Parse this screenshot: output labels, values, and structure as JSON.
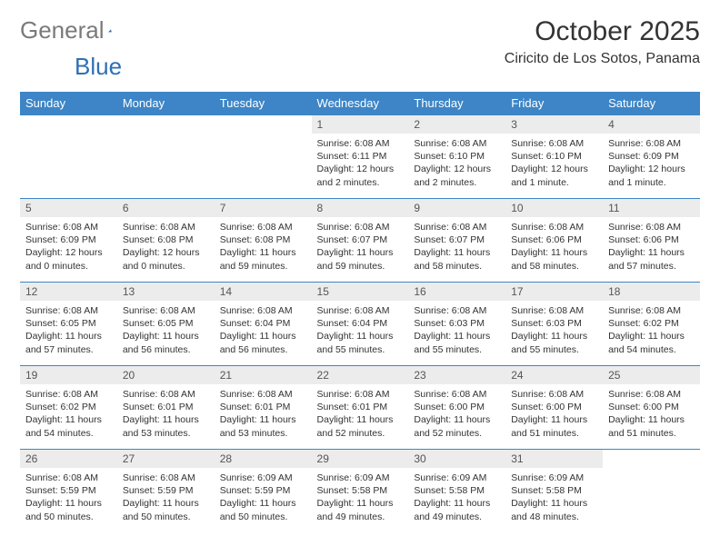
{
  "brand": {
    "text_gray": "General",
    "text_blue": "Blue",
    "gray_color": "#7a7a7a",
    "blue_color": "#2f6fb3",
    "logo_fill": "#2f6fb3"
  },
  "title": {
    "month_year": "October 2025",
    "location": "Ciricito de Los Sotos, Panama",
    "title_fontsize": 30,
    "location_fontsize": 16,
    "title_color": "#333333"
  },
  "calendar": {
    "header_bg": "#3d85c6",
    "header_text_color": "#ffffff",
    "daynum_bg": "#ececec",
    "row_border_color": "#3d85c6",
    "body_text_color": "#333333",
    "body_fontsize": 10.5,
    "day_headers": [
      "Sunday",
      "Monday",
      "Tuesday",
      "Wednesday",
      "Thursday",
      "Friday",
      "Saturday"
    ],
    "weeks": [
      [
        {
          "blank": true
        },
        {
          "blank": true
        },
        {
          "blank": true
        },
        {
          "day": "1",
          "sunrise": "Sunrise: 6:08 AM",
          "sunset": "Sunset: 6:11 PM",
          "daylight": "Daylight: 12 hours and 2 minutes."
        },
        {
          "day": "2",
          "sunrise": "Sunrise: 6:08 AM",
          "sunset": "Sunset: 6:10 PM",
          "daylight": "Daylight: 12 hours and 2 minutes."
        },
        {
          "day": "3",
          "sunrise": "Sunrise: 6:08 AM",
          "sunset": "Sunset: 6:10 PM",
          "daylight": "Daylight: 12 hours and 1 minute."
        },
        {
          "day": "4",
          "sunrise": "Sunrise: 6:08 AM",
          "sunset": "Sunset: 6:09 PM",
          "daylight": "Daylight: 12 hours and 1 minute."
        }
      ],
      [
        {
          "day": "5",
          "sunrise": "Sunrise: 6:08 AM",
          "sunset": "Sunset: 6:09 PM",
          "daylight": "Daylight: 12 hours and 0 minutes."
        },
        {
          "day": "6",
          "sunrise": "Sunrise: 6:08 AM",
          "sunset": "Sunset: 6:08 PM",
          "daylight": "Daylight: 12 hours and 0 minutes."
        },
        {
          "day": "7",
          "sunrise": "Sunrise: 6:08 AM",
          "sunset": "Sunset: 6:08 PM",
          "daylight": "Daylight: 11 hours and 59 minutes."
        },
        {
          "day": "8",
          "sunrise": "Sunrise: 6:08 AM",
          "sunset": "Sunset: 6:07 PM",
          "daylight": "Daylight: 11 hours and 59 minutes."
        },
        {
          "day": "9",
          "sunrise": "Sunrise: 6:08 AM",
          "sunset": "Sunset: 6:07 PM",
          "daylight": "Daylight: 11 hours and 58 minutes."
        },
        {
          "day": "10",
          "sunrise": "Sunrise: 6:08 AM",
          "sunset": "Sunset: 6:06 PM",
          "daylight": "Daylight: 11 hours and 58 minutes."
        },
        {
          "day": "11",
          "sunrise": "Sunrise: 6:08 AM",
          "sunset": "Sunset: 6:06 PM",
          "daylight": "Daylight: 11 hours and 57 minutes."
        }
      ],
      [
        {
          "day": "12",
          "sunrise": "Sunrise: 6:08 AM",
          "sunset": "Sunset: 6:05 PM",
          "daylight": "Daylight: 11 hours and 57 minutes."
        },
        {
          "day": "13",
          "sunrise": "Sunrise: 6:08 AM",
          "sunset": "Sunset: 6:05 PM",
          "daylight": "Daylight: 11 hours and 56 minutes."
        },
        {
          "day": "14",
          "sunrise": "Sunrise: 6:08 AM",
          "sunset": "Sunset: 6:04 PM",
          "daylight": "Daylight: 11 hours and 56 minutes."
        },
        {
          "day": "15",
          "sunrise": "Sunrise: 6:08 AM",
          "sunset": "Sunset: 6:04 PM",
          "daylight": "Daylight: 11 hours and 55 minutes."
        },
        {
          "day": "16",
          "sunrise": "Sunrise: 6:08 AM",
          "sunset": "Sunset: 6:03 PM",
          "daylight": "Daylight: 11 hours and 55 minutes."
        },
        {
          "day": "17",
          "sunrise": "Sunrise: 6:08 AM",
          "sunset": "Sunset: 6:03 PM",
          "daylight": "Daylight: 11 hours and 55 minutes."
        },
        {
          "day": "18",
          "sunrise": "Sunrise: 6:08 AM",
          "sunset": "Sunset: 6:02 PM",
          "daylight": "Daylight: 11 hours and 54 minutes."
        }
      ],
      [
        {
          "day": "19",
          "sunrise": "Sunrise: 6:08 AM",
          "sunset": "Sunset: 6:02 PM",
          "daylight": "Daylight: 11 hours and 54 minutes."
        },
        {
          "day": "20",
          "sunrise": "Sunrise: 6:08 AM",
          "sunset": "Sunset: 6:01 PM",
          "daylight": "Daylight: 11 hours and 53 minutes."
        },
        {
          "day": "21",
          "sunrise": "Sunrise: 6:08 AM",
          "sunset": "Sunset: 6:01 PM",
          "daylight": "Daylight: 11 hours and 53 minutes."
        },
        {
          "day": "22",
          "sunrise": "Sunrise: 6:08 AM",
          "sunset": "Sunset: 6:01 PM",
          "daylight": "Daylight: 11 hours and 52 minutes."
        },
        {
          "day": "23",
          "sunrise": "Sunrise: 6:08 AM",
          "sunset": "Sunset: 6:00 PM",
          "daylight": "Daylight: 11 hours and 52 minutes."
        },
        {
          "day": "24",
          "sunrise": "Sunrise: 6:08 AM",
          "sunset": "Sunset: 6:00 PM",
          "daylight": "Daylight: 11 hours and 51 minutes."
        },
        {
          "day": "25",
          "sunrise": "Sunrise: 6:08 AM",
          "sunset": "Sunset: 6:00 PM",
          "daylight": "Daylight: 11 hours and 51 minutes."
        }
      ],
      [
        {
          "day": "26",
          "sunrise": "Sunrise: 6:08 AM",
          "sunset": "Sunset: 5:59 PM",
          "daylight": "Daylight: 11 hours and 50 minutes."
        },
        {
          "day": "27",
          "sunrise": "Sunrise: 6:08 AM",
          "sunset": "Sunset: 5:59 PM",
          "daylight": "Daylight: 11 hours and 50 minutes."
        },
        {
          "day": "28",
          "sunrise": "Sunrise: 6:09 AM",
          "sunset": "Sunset: 5:59 PM",
          "daylight": "Daylight: 11 hours and 50 minutes."
        },
        {
          "day": "29",
          "sunrise": "Sunrise: 6:09 AM",
          "sunset": "Sunset: 5:58 PM",
          "daylight": "Daylight: 11 hours and 49 minutes."
        },
        {
          "day": "30",
          "sunrise": "Sunrise: 6:09 AM",
          "sunset": "Sunset: 5:58 PM",
          "daylight": "Daylight: 11 hours and 49 minutes."
        },
        {
          "day": "31",
          "sunrise": "Sunrise: 6:09 AM",
          "sunset": "Sunset: 5:58 PM",
          "daylight": "Daylight: 11 hours and 48 minutes."
        },
        {
          "blank": true
        }
      ]
    ]
  }
}
